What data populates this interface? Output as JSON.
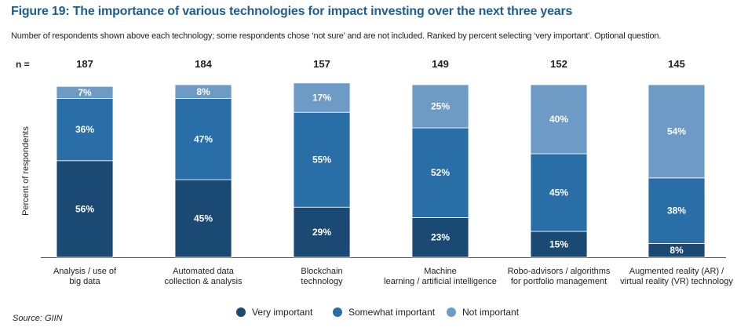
{
  "header": {
    "title": "Figure 19: The importance of various technologies for impact investing over the next three years",
    "subtitle": "Number of respondents shown above each technology; some respondents chose ‘not sure’ and are not included. Ranked by percent selecting ‘very important’. Optional question."
  },
  "source": "Source: GIIN",
  "colors": {
    "very_important": "#1a4a73",
    "somewhat_important": "#2a6ea7",
    "not_important": "#6e9ac6",
    "title": "#1d5e8e"
  },
  "chart_data": {
    "type": "bar",
    "stacked": true,
    "n_label": "n =",
    "ylabel": "Percent of respondents",
    "ylim": [
      0,
      100
    ],
    "grid": false,
    "legend_position": "bottom-center",
    "categories": [
      [
        "Analysis / use of",
        "big data"
      ],
      [
        "Automated data",
        "collection & analysis"
      ],
      [
        "Blockchain",
        "technology"
      ],
      [
        "Machine",
        "learning / artificial intelligence"
      ],
      [
        "Robo-advisors / algorithms",
        "for portfolio management"
      ],
      [
        "Augmented reality (AR) /",
        "virtual reality (VR) technology"
      ]
    ],
    "n": [
      "187",
      "184",
      "157",
      "149",
      "152",
      "145"
    ],
    "series": [
      {
        "name": "Very important",
        "values": [
          56,
          45,
          29,
          23,
          15,
          8
        ]
      },
      {
        "name": "Somewhat important",
        "values": [
          36,
          47,
          55,
          52,
          45,
          38
        ]
      },
      {
        "name": "Not important",
        "values": [
          7,
          8,
          17,
          25,
          40,
          54
        ]
      }
    ]
  }
}
